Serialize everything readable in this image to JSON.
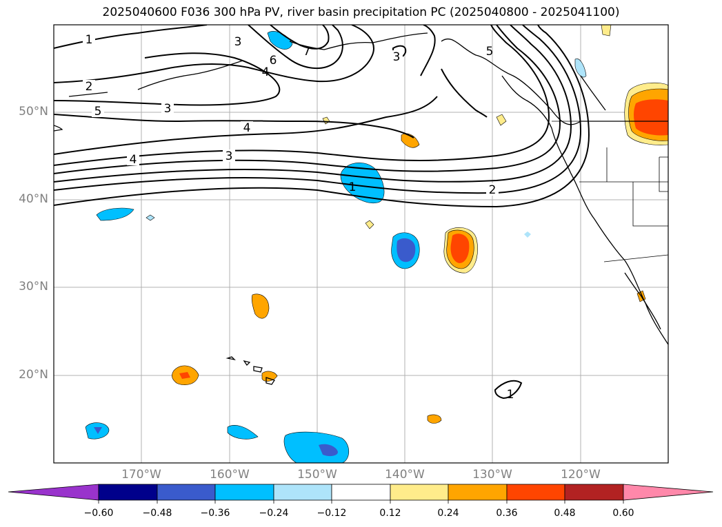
{
  "title": "2025040600 F036 300 hPa PV, river basin precipitation PC (2025040800 - 2025041100)",
  "lat_labels": [
    "50°N",
    "40°N",
    "30°N",
    "20°N"
  ],
  "lon_labels": [
    "170°W",
    "160°W",
    "150°W",
    "140°W",
    "130°W",
    "120°W"
  ],
  "contour_labels": [
    "1",
    "2",
    "5",
    "3",
    "4",
    "4",
    "3",
    "1",
    "2",
    "3",
    "6",
    "4",
    "7",
    "5",
    "3",
    "1"
  ],
  "colorbar": {
    "tick_labels": [
      "−0.60",
      "−0.48",
      "−0.36",
      "−0.24",
      "−0.12",
      "0.12",
      "0.24",
      "0.36",
      "0.48",
      "0.60"
    ],
    "colors": [
      "#9933cc",
      "#00008b",
      "#3a5bcc",
      "#00bfff",
      "#aee4fa",
      "#ffffff",
      "#ffec8b",
      "#ffa500",
      "#ff4500",
      "#b22222",
      "#ff88aa"
    ]
  },
  "colors": {
    "neg_light": "#aee4fa",
    "neg_mid": "#00bfff",
    "neg_strong": "#3a5bcc",
    "neg_dark": "#00008b",
    "pos_light": "#ffec8b",
    "pos_mid": "#ffa500",
    "pos_strong": "#ff4500",
    "grid": "#b0b0b0",
    "axis_label": "#808080"
  }
}
